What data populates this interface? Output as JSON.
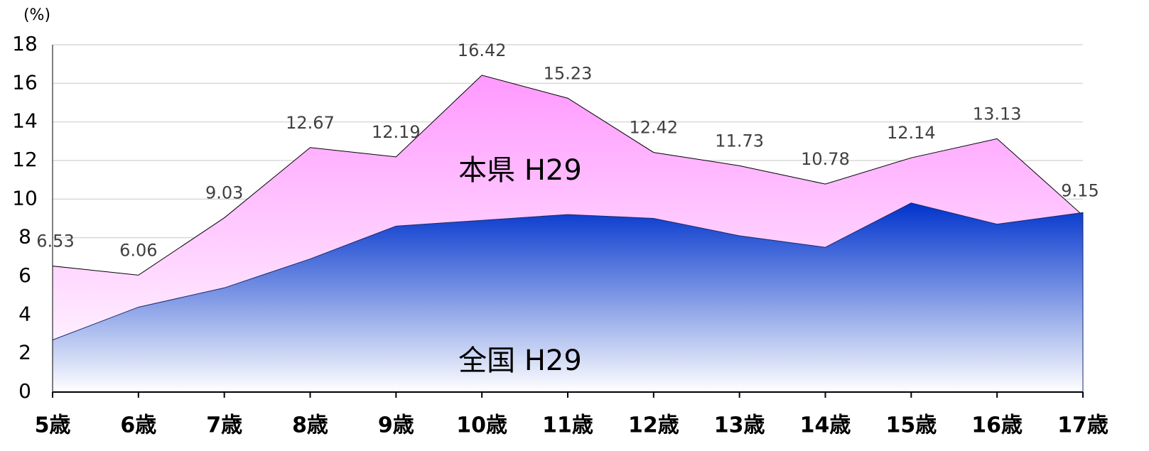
{
  "chart_data": {
    "type": "area",
    "y_axis_label": "(%)",
    "categories": [
      "5歳",
      "6歳",
      "7歳",
      "8歳",
      "9歳",
      "10歳",
      "11歳",
      "12歳",
      "13歳",
      "14歳",
      "15歳",
      "16歳",
      "17歳"
    ],
    "series": [
      {
        "name": "本県 H29",
        "color": "#ff99ff",
        "values": [
          6.53,
          6.06,
          9.03,
          12.67,
          12.19,
          16.42,
          15.23,
          12.42,
          11.73,
          10.78,
          12.14,
          13.13,
          9.15
        ]
      },
      {
        "name": "全国 H29",
        "color": "#0033cc",
        "values": [
          2.7,
          4.4,
          5.4,
          6.9,
          8.6,
          8.9,
          9.2,
          9.0,
          8.1,
          7.5,
          9.8,
          8.7,
          9.3
        ]
      }
    ],
    "ylim": [
      0,
      18
    ],
    "yticks": [
      0,
      2,
      4,
      6,
      8,
      10,
      12,
      14,
      16,
      18
    ],
    "grid": true
  }
}
